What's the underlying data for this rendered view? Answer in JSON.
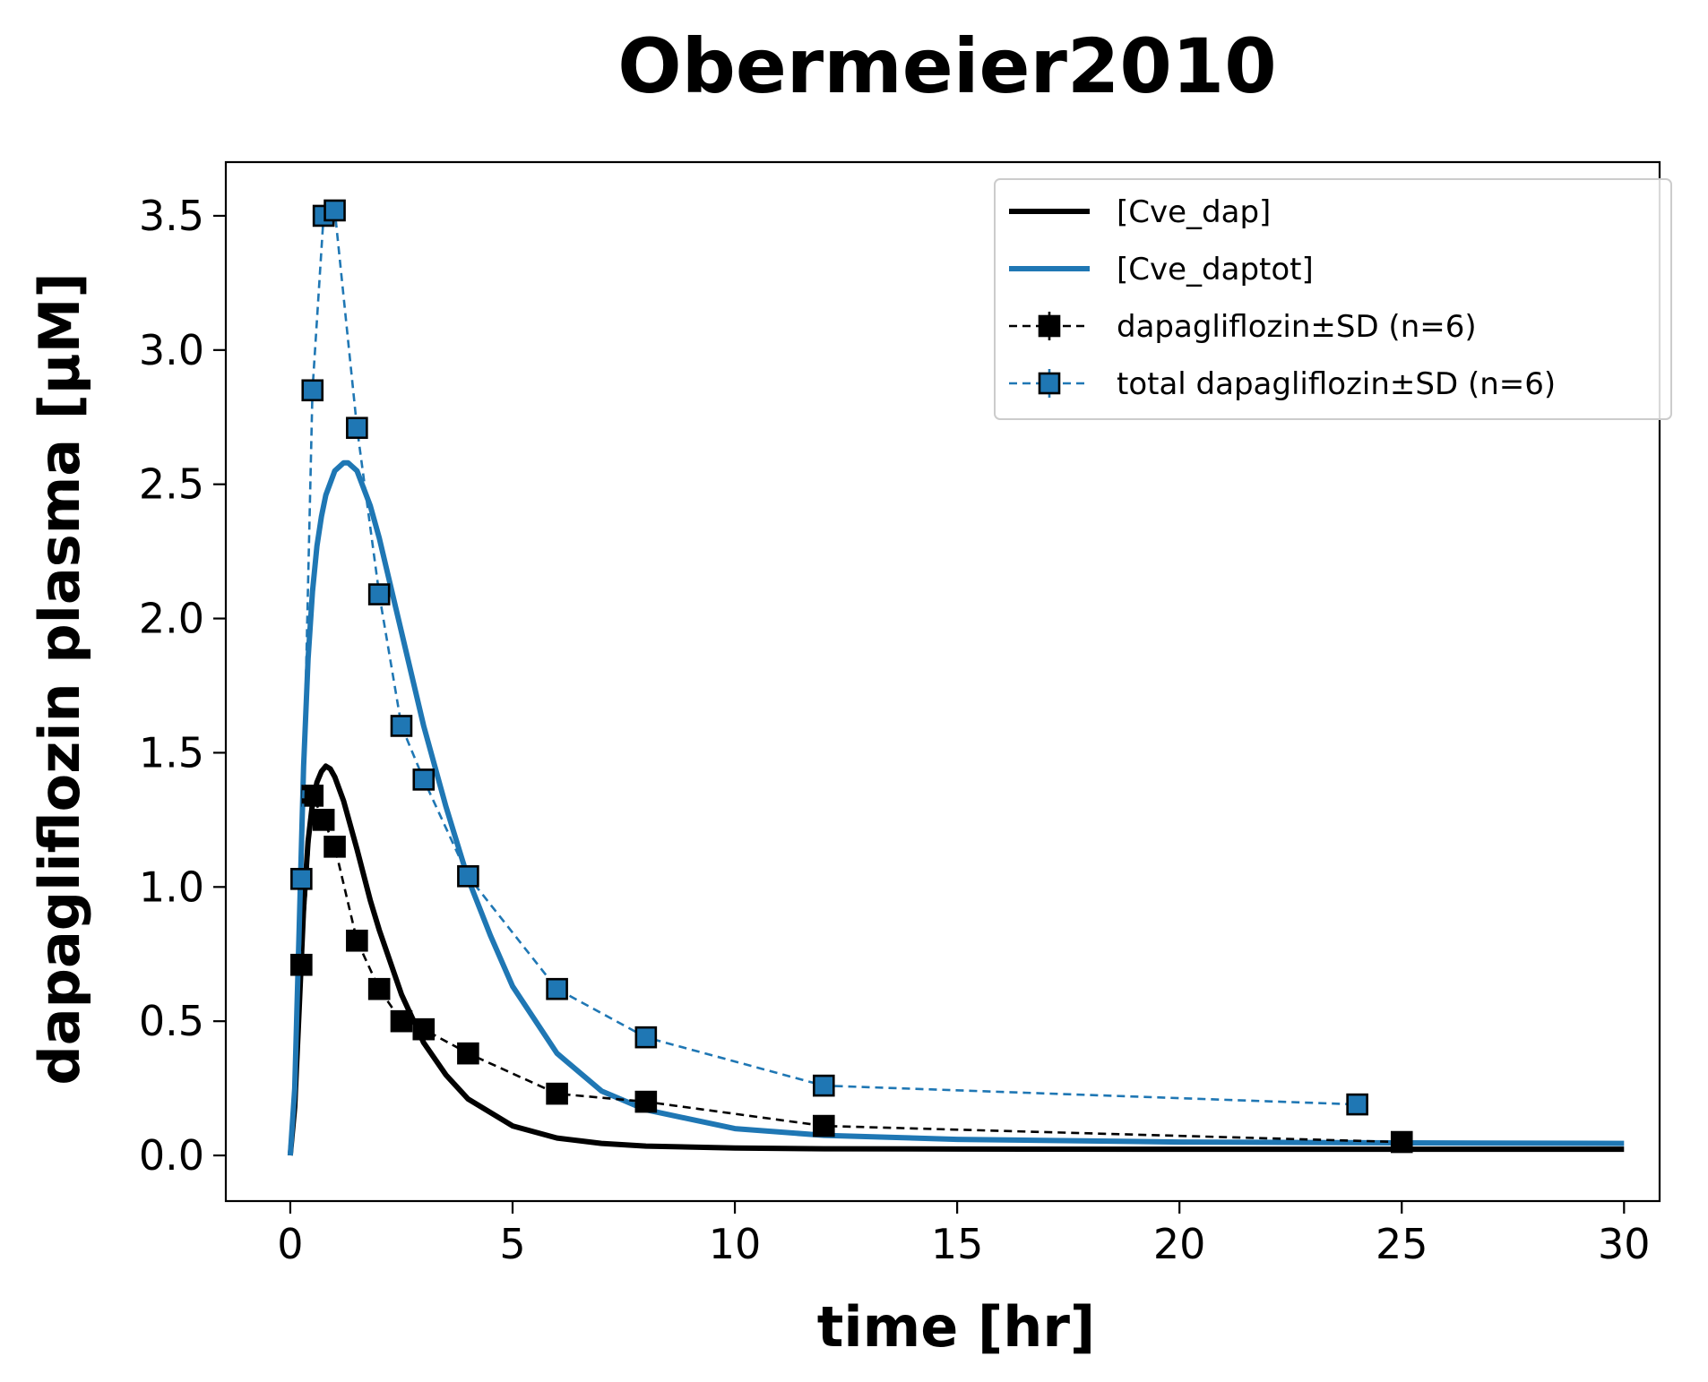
{
  "chart_data": {
    "type": "line",
    "title": "Obermeier2010",
    "xlabel": "time [hr]",
    "ylabel": "dapagliflozin plasma [µM]",
    "xlim": [
      -1.45,
      30.8
    ],
    "ylim": [
      -0.17,
      3.7
    ],
    "xticks": [
      0,
      5,
      10,
      15,
      20,
      25,
      30
    ],
    "xtick_labels": [
      "0",
      "5",
      "10",
      "15",
      "20",
      "25",
      "30"
    ],
    "yticks": [
      0.0,
      0.5,
      1.0,
      1.5,
      2.0,
      2.5,
      3.0,
      3.5
    ],
    "ytick_labels": [
      "0.0",
      "0.5",
      "1.0",
      "1.5",
      "2.0",
      "2.5",
      "3.0",
      "3.5"
    ],
    "grid": false,
    "legend_position": "top-right",
    "series": [
      {
        "name": "[Cve_dap]",
        "kind": "line",
        "color": "#000000",
        "x": [
          0,
          0.1,
          0.2,
          0.3,
          0.4,
          0.5,
          0.6,
          0.7,
          0.8,
          0.9,
          1.0,
          1.2,
          1.5,
          1.8,
          2.0,
          2.5,
          3.0,
          3.5,
          4.0,
          5.0,
          6.0,
          7.0,
          8.0,
          10.0,
          12.0,
          15.0,
          20.0,
          25.0,
          30.0
        ],
        "y": [
          0.0,
          0.18,
          0.55,
          0.92,
          1.17,
          1.31,
          1.39,
          1.43,
          1.45,
          1.44,
          1.41,
          1.32,
          1.14,
          0.95,
          0.84,
          0.6,
          0.42,
          0.3,
          0.21,
          0.11,
          0.065,
          0.045,
          0.035,
          0.028,
          0.025,
          0.024,
          0.023,
          0.023,
          0.023
        ]
      },
      {
        "name": "[Cve_daptot]",
        "kind": "line",
        "color": "#1f77b4",
        "x": [
          0,
          0.1,
          0.2,
          0.3,
          0.4,
          0.5,
          0.6,
          0.7,
          0.8,
          1.0,
          1.2,
          1.3,
          1.5,
          1.8,
          2.0,
          2.5,
          3.0,
          3.5,
          4.0,
          4.5,
          5.0,
          6.0,
          7.0,
          8.0,
          10.0,
          12.0,
          15.0,
          20.0,
          25.0,
          30.0
        ],
        "y": [
          0.0,
          0.25,
          0.85,
          1.45,
          1.85,
          2.1,
          2.27,
          2.38,
          2.46,
          2.55,
          2.58,
          2.58,
          2.55,
          2.42,
          2.3,
          1.95,
          1.6,
          1.3,
          1.03,
          0.82,
          0.63,
          0.38,
          0.24,
          0.17,
          0.1,
          0.075,
          0.06,
          0.05,
          0.047,
          0.045
        ]
      },
      {
        "name": "dapagliflozin±SD (n=6)",
        "kind": "marker-dashed",
        "color": "#000000",
        "x": [
          0.25,
          0.5,
          0.75,
          1.0,
          1.5,
          2.0,
          2.5,
          3.0,
          4.0,
          6.0,
          8.0,
          12.0,
          25.0
        ],
        "y": [
          0.71,
          1.34,
          1.25,
          1.15,
          0.8,
          0.62,
          0.5,
          0.47,
          0.38,
          0.23,
          0.2,
          0.11,
          0.05
        ]
      },
      {
        "name": "total dapagliflozin±SD (n=6)",
        "kind": "marker-dashed",
        "color": "#1f77b4",
        "x": [
          0.25,
          0.5,
          0.75,
          1.0,
          1.5,
          2.0,
          2.5,
          3.0,
          4.0,
          6.0,
          8.0,
          12.0,
          24.0
        ],
        "y": [
          1.03,
          2.85,
          3.5,
          3.52,
          2.71,
          2.09,
          1.6,
          1.4,
          1.04,
          0.62,
          0.44,
          0.26,
          0.19
        ]
      }
    ]
  }
}
